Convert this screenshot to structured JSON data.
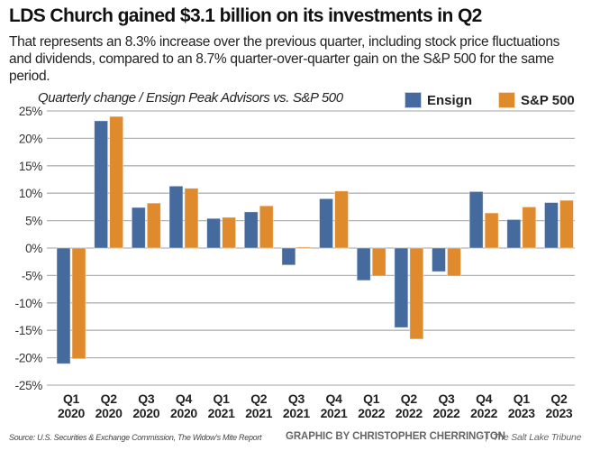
{
  "header": {
    "title": "LDS Church gained $3.1 billion on its investments in Q2",
    "subtitle": "That represents an 8.3% increase over the previous quarter, including stock price fluctuations and dividends, compared to an 8.7% quarter-over-quarter gain on the S&P 500 for the same period."
  },
  "footer": {
    "source": "Source: U.S. Securities & Exchange Commission, The Widow's Mite Report",
    "credit": "GRAPHIC BY CHRISTOPHER CHERRINGTON",
    "separator": "|",
    "publication": "The Salt Lake Tribune"
  },
  "colors": {
    "ensign": "#456a9e",
    "sp500": "#e08a2e",
    "grid": "#b3b3b3"
  },
  "chart_data": {
    "type": "bar",
    "title": "Quarterly change / Ensign Peak Advisors vs. S&P 500",
    "xlabel": "",
    "ylabel": "",
    "ylim": [
      -25,
      25
    ],
    "yticks": [
      25,
      20,
      15,
      10,
      5,
      0,
      -5,
      -10,
      -15,
      -20,
      -25
    ],
    "ytick_labels": [
      "25%",
      "20%",
      "15%",
      "10%",
      "5%",
      "0%",
      "-5%",
      "-10%",
      "-15%",
      "-20%",
      "-25%"
    ],
    "grid": true,
    "legend_position": "top-right",
    "categories": [
      [
        "Q1",
        "2020"
      ],
      [
        "Q2",
        "2020"
      ],
      [
        "Q3",
        "2020"
      ],
      [
        "Q4",
        "2020"
      ],
      [
        "Q1",
        "2021"
      ],
      [
        "Q2",
        "2021"
      ],
      [
        "Q3",
        "2021"
      ],
      [
        "Q4",
        "2021"
      ],
      [
        "Q1",
        "2022"
      ],
      [
        "Q2",
        "2022"
      ],
      [
        "Q3",
        "2022"
      ],
      [
        "Q4",
        "2022"
      ],
      [
        "Q1",
        "2023"
      ],
      [
        "Q2",
        "2023"
      ]
    ],
    "series": [
      {
        "name": "Ensign",
        "values": [
          -21.1,
          23.2,
          7.4,
          11.3,
          5.4,
          6.6,
          -3.1,
          9.0,
          -5.9,
          -14.5,
          -4.3,
          10.3,
          5.2,
          8.3
        ]
      },
      {
        "name": "S&P 500",
        "values": [
          -20.2,
          24.0,
          8.2,
          10.9,
          5.6,
          7.7,
          0.2,
          10.4,
          -5.1,
          -16.6,
          -5.1,
          6.4,
          7.5,
          8.7
        ]
      }
    ]
  }
}
